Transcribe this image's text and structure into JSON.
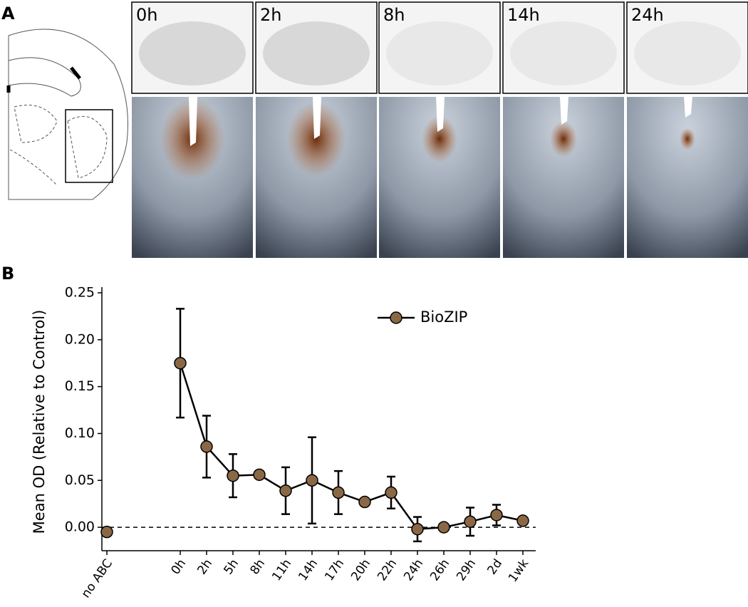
{
  "panels": {
    "a_label": "A",
    "b_label": "B",
    "timepoints": [
      "0h",
      "2h",
      "8h",
      "14h",
      "24h"
    ]
  },
  "chart_data": {
    "type": "line",
    "y_label": "Mean OD (Relative to Control)",
    "categories": [
      "no ABC",
      "0h",
      "2h",
      "5h",
      "8h",
      "11h",
      "14h",
      "17h",
      "20h",
      "22h",
      "24h",
      "26h",
      "29h",
      "2d",
      "1wk"
    ],
    "series": [
      {
        "name": "BioZIP",
        "color": "#8b6845",
        "values": [
          -0.005,
          0.175,
          0.086,
          0.055,
          0.056,
          0.039,
          0.05,
          0.037,
          0.027,
          0.037,
          -0.002,
          0.0,
          0.006,
          0.013,
          0.007
        ],
        "errors": [
          null,
          0.058,
          0.033,
          0.023,
          0.004,
          0.025,
          0.046,
          0.023,
          null,
          0.017,
          0.013,
          0.002,
          0.015,
          0.011,
          0.003
        ]
      }
    ],
    "ylim": [
      -0.025,
      0.25
    ],
    "yticks": [
      {
        "value": 0,
        "label": "0.00"
      },
      0.05,
      {
        "value": 0.1,
        "label": "0.10"
      },
      0.15,
      {
        "value": 0.2,
        "label": "0.20"
      },
      0.25
    ],
    "reference_line": 0,
    "legend": "upper right"
  }
}
